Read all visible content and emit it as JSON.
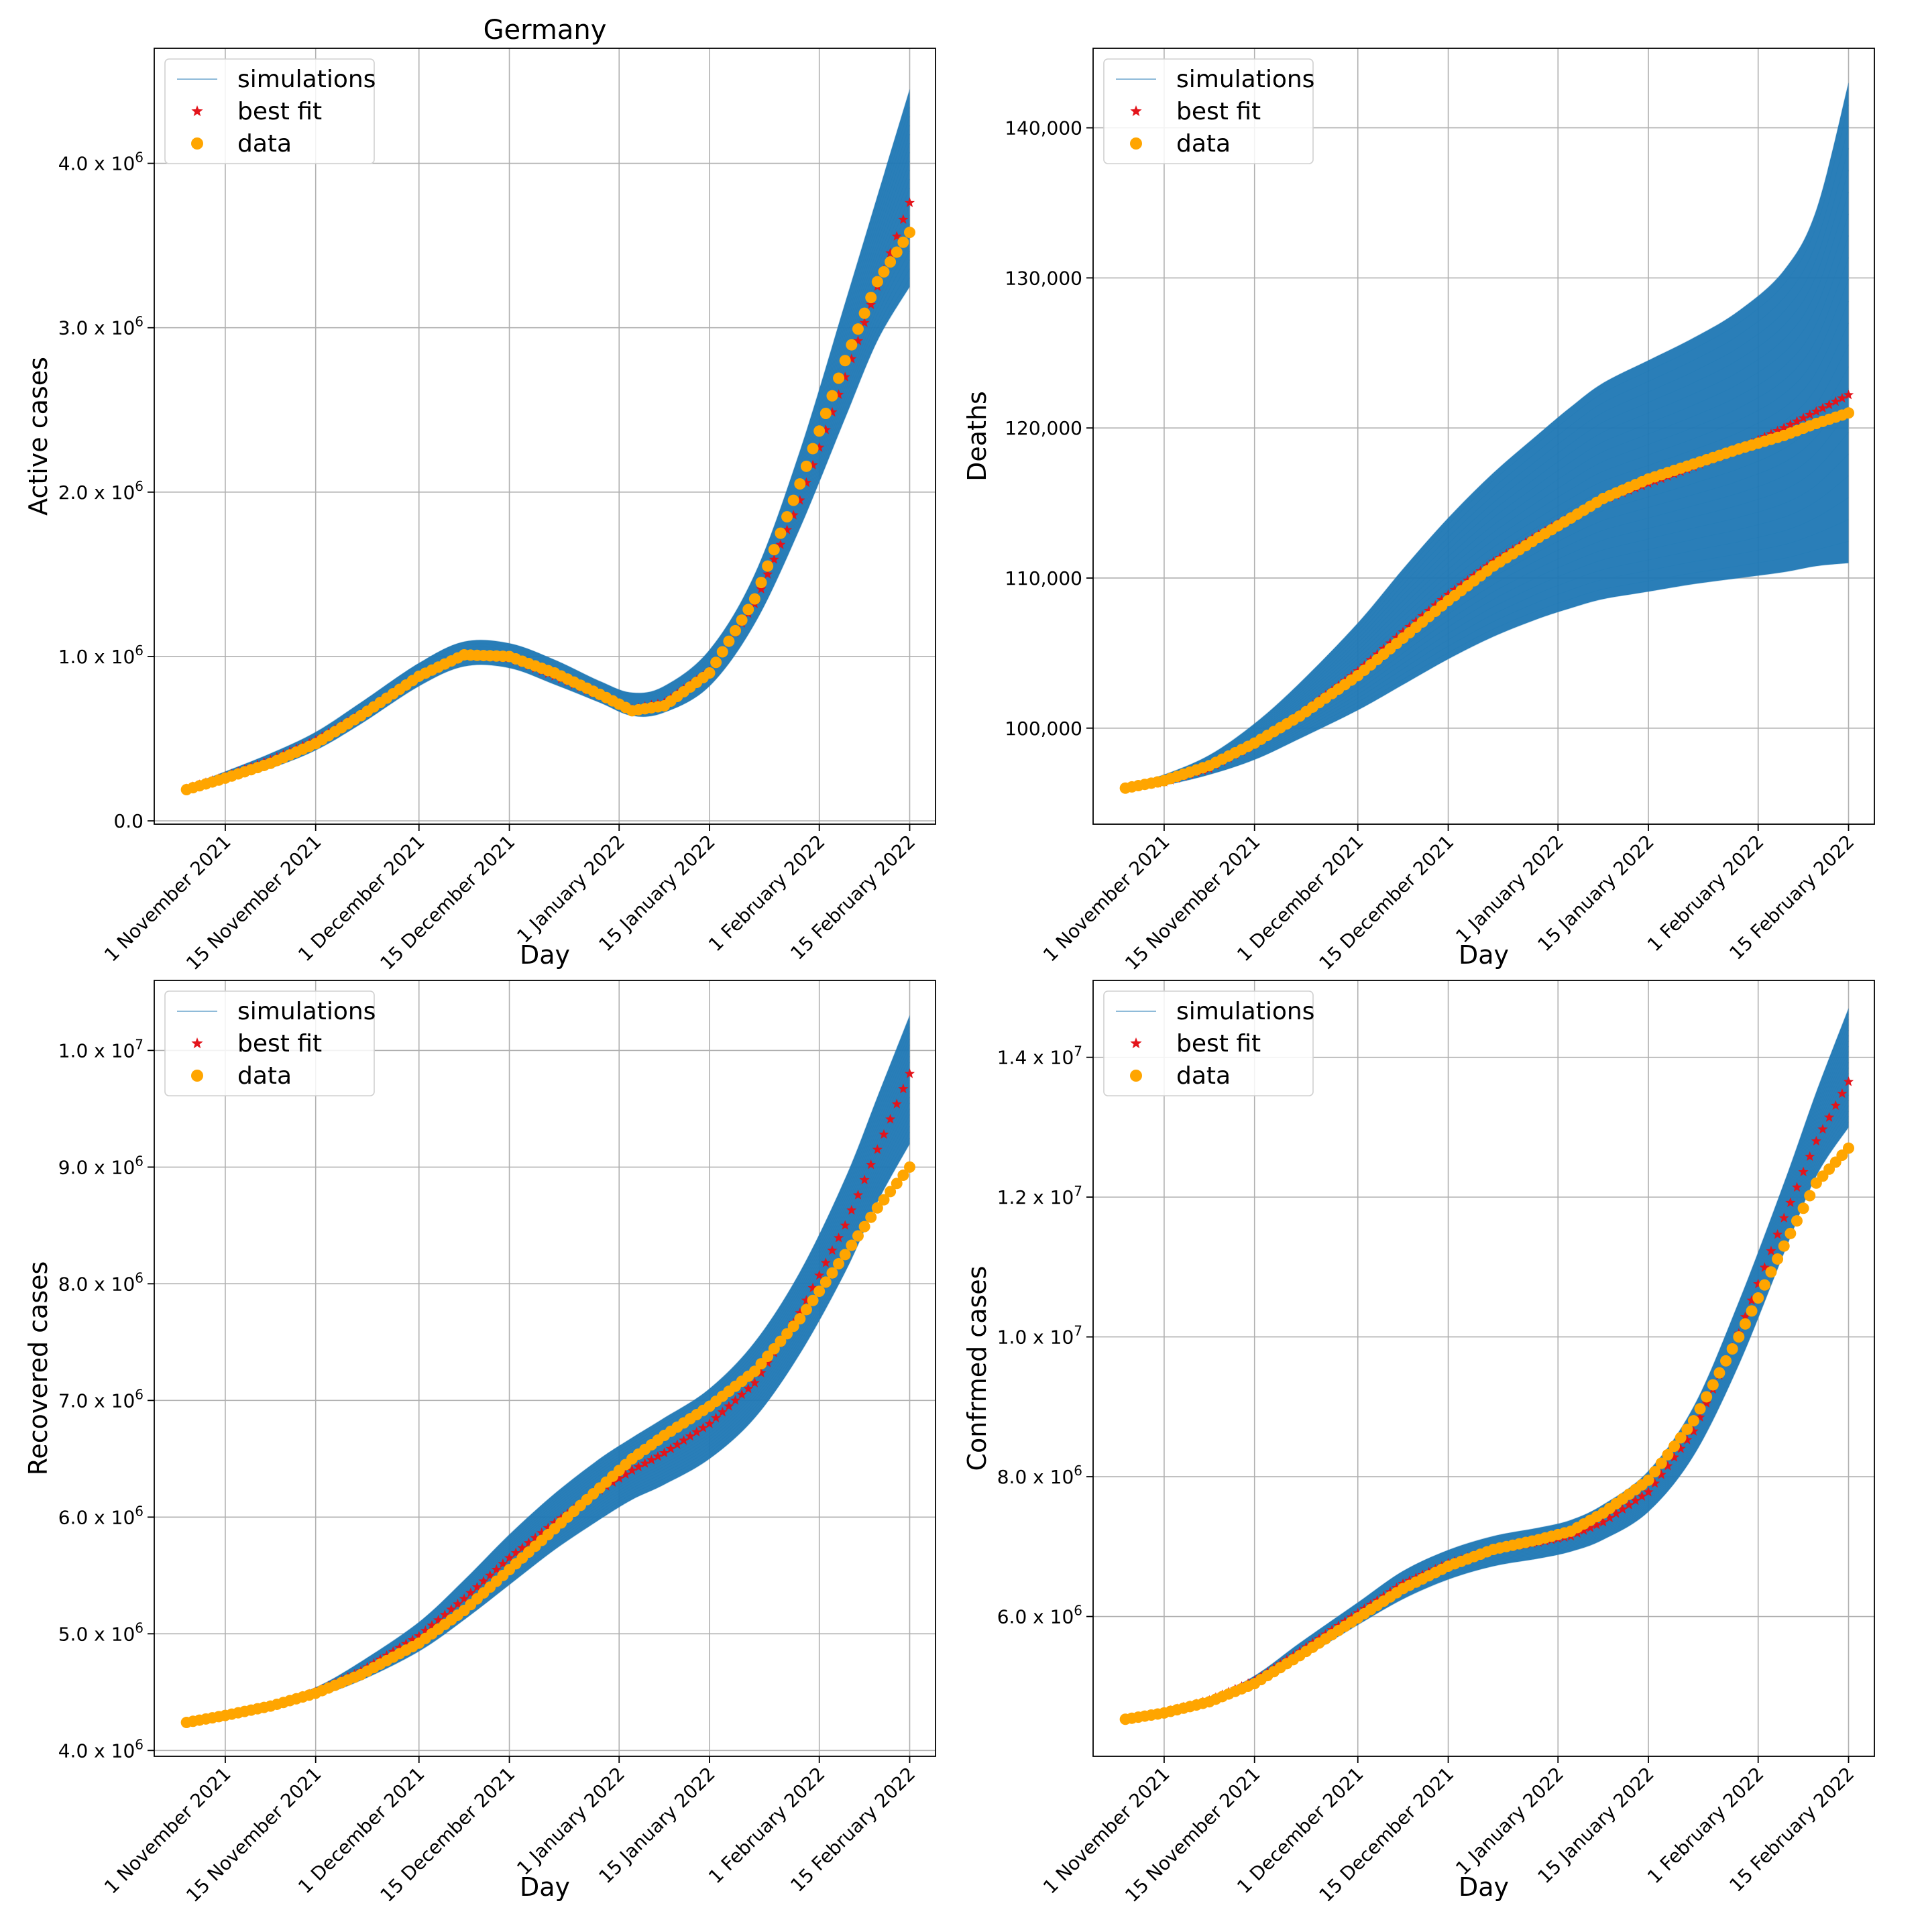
{
  "figure_title": "Germany",
  "colors": {
    "simulations": "#1f77b4",
    "best_fit": "#e3141b",
    "data": "#ffa500",
    "grid": "#b0b0b0"
  },
  "legend": {
    "simulations": "simulations",
    "best_fit": "best fit",
    "data": "data"
  },
  "chart_data": [
    {
      "type": "line",
      "title": "Germany",
      "xlabel": "Day",
      "ylabel": "Active cases",
      "x_ticks": [
        "1 November 2021",
        "15 November 2021",
        "1 December 2021",
        "15 December 2021",
        "1 January 2022",
        "15 January 2022",
        "1 February 2022",
        "15 February 2022"
      ],
      "xlim": [
        "2021-10-21",
        "2022-02-19"
      ],
      "ylim": [
        -20000,
        4700000
      ],
      "y_ticks": [
        {
          "value": 0,
          "label": "0.0"
        },
        {
          "value": 1000000,
          "label": "1.0 x 10",
          "exp": "6"
        },
        {
          "value": 2000000,
          "label": "2.0 x 10",
          "exp": "6"
        },
        {
          "value": 3000000,
          "label": "3.0 x 10",
          "exp": "6"
        },
        {
          "value": 4000000,
          "label": "4.0 x 10",
          "exp": "6"
        }
      ],
      "grid": true,
      "legend_position": "top-left",
      "data_series": {
        "x": [
          "2021-10-26",
          "2021-11-01",
          "2021-11-08",
          "2021-11-15",
          "2021-11-22",
          "2021-12-01",
          "2021-12-08",
          "2021-12-15",
          "2021-12-22",
          "2021-12-29",
          "2022-01-03",
          "2022-01-08",
          "2022-01-15",
          "2022-01-22",
          "2022-01-29",
          "2022-02-05",
          "2022-02-10",
          "2022-02-15"
        ],
        "y": [
          190000,
          260000,
          350000,
          470000,
          640000,
          880000,
          1010000,
          1000000,
          900000,
          770000,
          670000,
          700000,
          900000,
          1350000,
          2050000,
          2800000,
          3280000,
          3580000
        ]
      },
      "best_fit_series": {
        "x": [
          "2021-10-26",
          "2021-11-01",
          "2021-11-08",
          "2021-11-15",
          "2021-11-22",
          "2021-12-01",
          "2021-12-08",
          "2021-12-15",
          "2021-12-22",
          "2021-12-29",
          "2022-01-03",
          "2022-01-08",
          "2022-01-15",
          "2022-01-22",
          "2022-01-29",
          "2022-02-05",
          "2022-02-10",
          "2022-02-15"
        ],
        "y": [
          195000,
          270000,
          370000,
          490000,
          650000,
          880000,
          1010000,
          990000,
          880000,
          760000,
          680000,
          720000,
          910000,
          1320000,
          1950000,
          2700000,
          3250000,
          3760000
        ]
      },
      "band": {
        "lower": [
          180000,
          240000,
          320000,
          430000,
          590000,
          820000,
          940000,
          930000,
          830000,
          720000,
          640000,
          660000,
          820000,
          1200000,
          1780000,
          2450000,
          2920000,
          3250000
        ],
        "upper": [
          210000,
          300000,
          410000,
          540000,
          720000,
          960000,
          1090000,
          1080000,
          980000,
          850000,
          780000,
          820000,
          1040000,
          1500000,
          2250000,
          3150000,
          3800000,
          4450000
        ]
      }
    },
    {
      "type": "line",
      "title": "",
      "xlabel": "Day",
      "ylabel": "Deaths",
      "x_ticks": [
        "1 November 2021",
        "15 November 2021",
        "1 December 2021",
        "15 December 2021",
        "1 January 2022",
        "15 January 2022",
        "1 February 2022",
        "15 February 2022"
      ],
      "xlim": [
        "2021-10-21",
        "2022-02-19"
      ],
      "ylim": [
        93600,
        145300
      ],
      "y_ticks": [
        {
          "value": 100000,
          "label": "100,000"
        },
        {
          "value": 110000,
          "label": "110,000"
        },
        {
          "value": 120000,
          "label": "120,000"
        },
        {
          "value": 130000,
          "label": "130,000"
        },
        {
          "value": 140000,
          "label": "140,000"
        }
      ],
      "grid": true,
      "legend_position": "top-left",
      "data_series": {
        "x": [
          "2021-10-26",
          "2021-11-01",
          "2021-11-08",
          "2021-11-15",
          "2021-11-22",
          "2021-12-01",
          "2021-12-08",
          "2021-12-15",
          "2021-12-22",
          "2021-12-29",
          "2022-01-03",
          "2022-01-08",
          "2022-01-15",
          "2022-01-22",
          "2022-01-29",
          "2022-02-05",
          "2022-02-10",
          "2022-02-15"
        ],
        "y": [
          96000,
          96500,
          97500,
          99000,
          100800,
          103500,
          106000,
          108500,
          110800,
          112700,
          114000,
          115300,
          116600,
          117600,
          118600,
          119500,
          120300,
          121000
        ]
      },
      "best_fit_series": {
        "x": [
          "2021-10-26",
          "2021-11-01",
          "2021-11-08",
          "2021-11-15",
          "2021-11-22",
          "2021-12-01",
          "2021-12-08",
          "2021-12-15",
          "2021-12-22",
          "2021-12-29",
          "2022-01-03",
          "2022-01-08",
          "2022-01-15",
          "2022-01-22",
          "2022-01-29",
          "2022-02-05",
          "2022-02-10",
          "2022-02-15"
        ],
        "y": [
          96000,
          96400,
          97300,
          98900,
          100900,
          103800,
          106400,
          108900,
          111100,
          112900,
          114100,
          115200,
          116300,
          117400,
          118600,
          120000,
          121100,
          122200
        ]
      },
      "band": {
        "lower": [
          95900,
          96200,
          96900,
          97900,
          99300,
          101200,
          102900,
          104600,
          106100,
          107300,
          108000,
          108600,
          109100,
          109600,
          110000,
          110400,
          110800,
          111000
        ],
        "upper": [
          96200,
          96900,
          98200,
          100300,
          103000,
          107000,
          110600,
          114000,
          117000,
          119600,
          121400,
          123000,
          124500,
          126000,
          127800,
          130500,
          134500,
          143000
        ]
      }
    },
    {
      "type": "line",
      "title": "",
      "xlabel": "Day",
      "ylabel": "Recovered cases",
      "x_ticks": [
        "1 November 2021",
        "15 November 2021",
        "1 December 2021",
        "15 December 2021",
        "1 January 2022",
        "15 January 2022",
        "1 February 2022",
        "15 February 2022"
      ],
      "xlim": [
        "2021-10-21",
        "2022-02-19"
      ],
      "ylim": [
        3950000,
        10600000
      ],
      "y_ticks": [
        {
          "value": 4000000,
          "label": "4.0 x 10",
          "exp": "6"
        },
        {
          "value": 5000000,
          "label": "5.0 x 10",
          "exp": "6"
        },
        {
          "value": 6000000,
          "label": "6.0 x 10",
          "exp": "6"
        },
        {
          "value": 7000000,
          "label": "7.0 x 10",
          "exp": "6"
        },
        {
          "value": 8000000,
          "label": "8.0 x 10",
          "exp": "6"
        },
        {
          "value": 9000000,
          "label": "9.0 x 10",
          "exp": "6"
        },
        {
          "value": 10000000,
          "label": "1.0 x 10",
          "exp": "7"
        }
      ],
      "grid": true,
      "legend_position": "top-left",
      "data_series": {
        "x": [
          "2021-10-26",
          "2021-11-01",
          "2021-11-08",
          "2021-11-15",
          "2021-11-22",
          "2021-12-01",
          "2021-12-08",
          "2021-12-15",
          "2021-12-22",
          "2021-12-29",
          "2022-01-03",
          "2022-01-08",
          "2022-01-15",
          "2022-01-22",
          "2022-01-29",
          "2022-02-05",
          "2022-02-10",
          "2022-02-15"
        ],
        "y": [
          4240000,
          4300000,
          4380000,
          4490000,
          4650000,
          4920000,
          5200000,
          5550000,
          5900000,
          6250000,
          6500000,
          6700000,
          6950000,
          7250000,
          7700000,
          8250000,
          8650000,
          9000000
        ]
      },
      "best_fit_series": {
        "x": [
          "2021-10-26",
          "2021-11-01",
          "2021-11-08",
          "2021-11-15",
          "2021-11-22",
          "2021-12-01",
          "2021-12-08",
          "2021-12-15",
          "2021-12-22",
          "2021-12-29",
          "2022-01-03",
          "2022-01-08",
          "2022-01-15",
          "2022-01-22",
          "2022-01-29",
          "2022-02-05",
          "2022-02-10",
          "2022-02-15"
        ],
        "y": [
          4240000,
          4300000,
          4380000,
          4500000,
          4680000,
          4980000,
          5300000,
          5650000,
          5950000,
          6230000,
          6400000,
          6550000,
          6800000,
          7150000,
          7750000,
          8500000,
          9150000,
          9800000
        ]
      },
      "band": {
        "lower": [
          4230000,
          4280000,
          4360000,
          4460000,
          4600000,
          4850000,
          5120000,
          5420000,
          5720000,
          5980000,
          6150000,
          6280000,
          6500000,
          6850000,
          7400000,
          8100000,
          8700000,
          9200000
        ],
        "upper": [
          4250000,
          4320000,
          4410000,
          4540000,
          4760000,
          5100000,
          5460000,
          5850000,
          6200000,
          6500000,
          6680000,
          6850000,
          7100000,
          7500000,
          8100000,
          8900000,
          9600000,
          10300000
        ]
      }
    },
    {
      "type": "line",
      "title": "",
      "xlabel": "Day",
      "ylabel": "Confrmed cases",
      "x_ticks": [
        "1 November 2021",
        "15 November 2021",
        "1 December 2021",
        "15 December 2021",
        "1 January 2022",
        "15 January 2022",
        "1 February 2022",
        "15 February 2022"
      ],
      "xlim": [
        "2021-10-21",
        "2022-02-19"
      ],
      "ylim": [
        4000000,
        15100000
      ],
      "y_ticks": [
        {
          "value": 6000000,
          "label": "6.0 x 10",
          "exp": "6"
        },
        {
          "value": 8000000,
          "label": "8.0 x 10",
          "exp": "6"
        },
        {
          "value": 10000000,
          "label": "1.0 x 10",
          "exp": "7"
        },
        {
          "value": 12000000,
          "label": "1.2 x 10",
          "exp": "7"
        },
        {
          "value": 14000000,
          "label": "1.4 x 10",
          "exp": "7"
        }
      ],
      "grid": true,
      "legend_position": "top-left",
      "data_series": {
        "x": [
          "2021-10-26",
          "2021-11-01",
          "2021-11-08",
          "2021-11-15",
          "2021-11-22",
          "2021-12-01",
          "2021-12-08",
          "2021-12-15",
          "2021-12-22",
          "2021-12-29",
          "2022-01-03",
          "2022-01-08",
          "2022-01-15",
          "2022-01-22",
          "2022-01-29",
          "2022-02-05",
          "2022-02-10",
          "2022-02-15"
        ],
        "y": [
          4530000,
          4620000,
          4780000,
          5040000,
          5440000,
          5980000,
          6400000,
          6720000,
          6960000,
          7100000,
          7220000,
          7480000,
          7950000,
          8800000,
          10000000,
          11300000,
          12200000,
          12700000
        ]
      },
      "best_fit_series": {
        "x": [
          "2021-10-26",
          "2021-11-01",
          "2021-11-08",
          "2021-11-15",
          "2021-11-22",
          "2021-12-01",
          "2021-12-08",
          "2021-12-15",
          "2021-12-22",
          "2021-12-29",
          "2022-01-03",
          "2022-01-08",
          "2022-01-15",
          "2022-01-22",
          "2022-01-29",
          "2022-02-05",
          "2022-02-10",
          "2022-02-15"
        ],
        "y": [
          4530000,
          4630000,
          4800000,
          5080000,
          5500000,
          6050000,
          6470000,
          6760000,
          6960000,
          7060000,
          7150000,
          7350000,
          7780000,
          8650000,
          10050000,
          11700000,
          12800000,
          13650000
        ]
      },
      "band": {
        "lower": [
          4520000,
          4610000,
          4760000,
          5000000,
          5380000,
          5880000,
          6250000,
          6530000,
          6720000,
          6830000,
          6930000,
          7100000,
          7500000,
          8300000,
          9600000,
          11200000,
          12300000,
          13000000
        ],
        "upper": [
          4540000,
          4650000,
          4840000,
          5150000,
          5620000,
          6200000,
          6650000,
          6950000,
          7150000,
          7270000,
          7380000,
          7600000,
          8080000,
          9000000,
          10500000,
          12200000,
          13500000,
          14700000
        ]
      }
    }
  ]
}
